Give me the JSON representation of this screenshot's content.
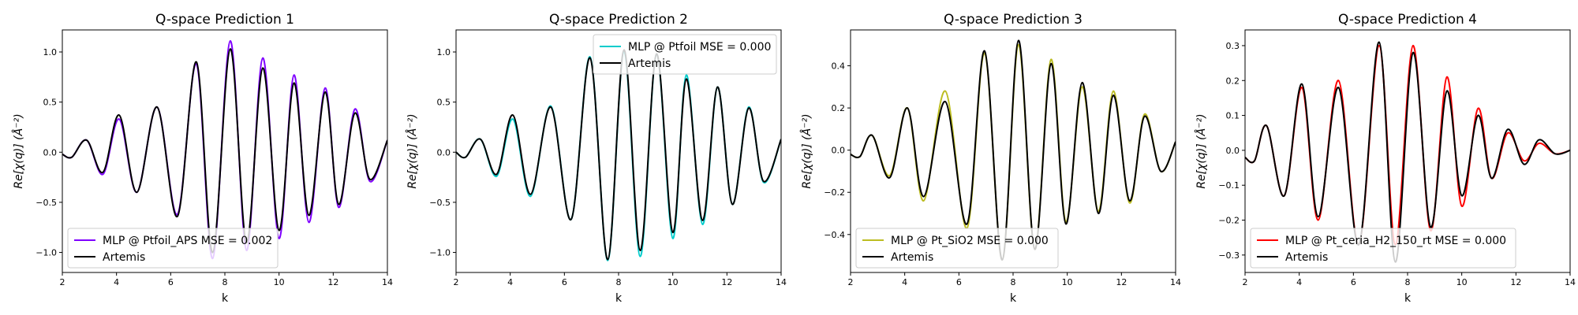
{
  "figure": {
    "background": "#ffffff"
  },
  "chart_data": [
    {
      "type": "line",
      "title": "Q-space Prediction 1",
      "xlabel": "k",
      "ylabel": "Re[χ(q)] (Å⁻²)",
      "xlim": [
        2,
        14
      ],
      "ylim": [
        -1.2,
        1.22
      ],
      "xticks": [
        2,
        4,
        6,
        8,
        10,
        12,
        14
      ],
      "xtick_labels": [
        "2",
        "4",
        "6",
        "8",
        "10",
        "12",
        "14"
      ],
      "yticks": [
        -1.0,
        -0.5,
        0.0,
        0.5,
        1.0
      ],
      "ytick_labels": [
        "−1.0",
        "−0.5",
        "0.0",
        "0.5",
        "1.0"
      ],
      "legend": "lower-left",
      "series": [
        {
          "name": "MLP @ Ptfoil_APS MSE = 0.002",
          "color": "#7f00ff",
          "x": [
            2.0,
            2.35,
            2.9,
            3.5,
            4.1,
            4.75,
            5.5,
            6.25,
            6.95,
            7.55,
            8.2,
            8.8,
            9.4,
            10.0,
            10.55,
            11.1,
            11.7,
            12.2,
            12.8,
            13.35,
            14.0
          ],
          "y": [
            -0.02,
            -0.05,
            0.12,
            -0.22,
            0.33,
            -0.4,
            0.45,
            -0.62,
            0.88,
            -1.06,
            1.11,
            -0.98,
            0.94,
            -0.86,
            0.77,
            -0.7,
            0.64,
            -0.55,
            0.43,
            -0.29,
            0.12
          ]
        },
        {
          "name": "Artemis",
          "color": "#000000",
          "x": [
            2.0,
            2.35,
            2.9,
            3.5,
            4.1,
            4.75,
            5.5,
            6.25,
            6.95,
            7.55,
            8.2,
            8.8,
            9.4,
            10.0,
            10.55,
            11.1,
            11.7,
            12.2,
            12.8,
            13.35,
            14.0
          ],
          "y": [
            -0.02,
            -0.05,
            0.12,
            -0.2,
            0.37,
            -0.4,
            0.45,
            -0.64,
            0.9,
            -1.0,
            1.03,
            -0.9,
            0.84,
            -0.78,
            0.69,
            -0.63,
            0.6,
            -0.52,
            0.39,
            -0.27,
            0.12
          ]
        }
      ]
    },
    {
      "type": "line",
      "title": "Q-space Prediction 2",
      "xlabel": "k",
      "ylabel": "Re[χ(q)] (Å⁻²)",
      "xlim": [
        2,
        14
      ],
      "ylim": [
        -1.2,
        1.22
      ],
      "xticks": [
        2,
        4,
        6,
        8,
        10,
        12,
        14
      ],
      "xtick_labels": [
        "2",
        "4",
        "6",
        "8",
        "10",
        "12",
        "14"
      ],
      "yticks": [
        -1.0,
        -0.5,
        0.0,
        0.5,
        1.0
      ],
      "ytick_labels": [
        "−1.0",
        "−0.5",
        "0.0",
        "0.5",
        "1.0"
      ],
      "legend": "upper-right",
      "series": [
        {
          "name": "MLP @ Ptfoil MSE = 0.000",
          "color": "#00cccc",
          "x": [
            2.0,
            2.35,
            2.9,
            3.5,
            4.1,
            4.75,
            5.5,
            6.25,
            6.95,
            7.6,
            8.2,
            8.8,
            9.4,
            10.0,
            10.5,
            11.1,
            11.65,
            12.2,
            12.8,
            13.35,
            14.0
          ],
          "y": [
            0.0,
            -0.05,
            0.13,
            -0.24,
            0.33,
            -0.44,
            0.46,
            -0.67,
            0.95,
            -1.08,
            1.0,
            -1.04,
            0.98,
            -0.86,
            0.77,
            -0.72,
            0.65,
            -0.52,
            0.45,
            -0.3,
            0.13
          ]
        },
        {
          "name": "Artemis",
          "color": "#000000",
          "x": [
            2.0,
            2.35,
            2.9,
            3.5,
            4.1,
            4.75,
            5.5,
            6.25,
            6.95,
            7.6,
            8.2,
            8.8,
            9.4,
            10.0,
            10.5,
            11.1,
            11.65,
            12.2,
            12.8,
            13.35,
            14.0
          ],
          "y": [
            0.0,
            -0.05,
            0.13,
            -0.22,
            0.37,
            -0.42,
            0.45,
            -0.67,
            0.94,
            -1.07,
            1.02,
            -0.98,
            0.98,
            -0.8,
            0.73,
            -0.68,
            0.65,
            -0.52,
            0.44,
            -0.29,
            0.13
          ]
        }
      ]
    },
    {
      "type": "line",
      "title": "Q-space Prediction 3",
      "xlabel": "k",
      "ylabel": "Re[χ(q)] (Å⁻²)",
      "xlim": [
        2,
        14
      ],
      "ylim": [
        -0.58,
        0.57
      ],
      "xticks": [
        2,
        4,
        6,
        8,
        10,
        12,
        14
      ],
      "xtick_labels": [
        "2",
        "4",
        "6",
        "8",
        "10",
        "12",
        "14"
      ],
      "yticks": [
        -0.4,
        -0.2,
        0.0,
        0.2,
        0.4
      ],
      "ytick_labels": [
        "−0.4",
        "−0.2",
        "0.0",
        "0.2",
        "0.4"
      ],
      "legend": "lower-left",
      "series": [
        {
          "name": "MLP @ Pt_SiO2 MSE = 0.000",
          "color": "#bcbd22",
          "x": [
            2.0,
            2.35,
            2.8,
            3.45,
            4.1,
            4.7,
            5.5,
            6.3,
            6.95,
            7.6,
            8.2,
            8.8,
            9.4,
            9.95,
            10.55,
            11.15,
            11.7,
            12.3,
            12.85,
            13.45,
            14.0
          ],
          "y": [
            -0.02,
            -0.03,
            0.07,
            -0.12,
            0.2,
            -0.24,
            0.28,
            -0.37,
            0.46,
            -0.52,
            0.5,
            -0.47,
            0.43,
            -0.34,
            0.3,
            -0.29,
            0.28,
            -0.25,
            0.17,
            -0.1,
            0.04
          ]
        },
        {
          "name": "Artemis",
          "color": "#000000",
          "x": [
            2.0,
            2.35,
            2.8,
            3.45,
            4.1,
            4.7,
            5.5,
            6.3,
            6.95,
            7.6,
            8.2,
            8.8,
            9.4,
            9.95,
            10.55,
            11.15,
            11.7,
            12.3,
            12.85,
            13.45,
            14.0
          ],
          "y": [
            -0.02,
            -0.03,
            0.07,
            -0.13,
            0.2,
            -0.22,
            0.23,
            -0.35,
            0.47,
            -0.52,
            0.52,
            -0.47,
            0.41,
            -0.35,
            0.32,
            -0.3,
            0.26,
            -0.24,
            0.16,
            -0.1,
            0.04
          ]
        }
      ]
    },
    {
      "type": "line",
      "title": "Q-space Prediction 4",
      "xlabel": "k",
      "ylabel": "Re[χ(q)] (Å⁻²)",
      "xlim": [
        2,
        14
      ],
      "ylim": [
        -0.35,
        0.345
      ],
      "xticks": [
        2,
        4,
        6,
        8,
        10,
        12,
        14
      ],
      "xtick_labels": [
        "2",
        "4",
        "6",
        "8",
        "10",
        "12",
        "14"
      ],
      "yticks": [
        -0.3,
        -0.2,
        -0.1,
        0.0,
        0.1,
        0.2,
        0.3
      ],
      "ytick_labels": [
        "−0.3",
        "−0.2",
        "−0.1",
        "0.0",
        "0.1",
        "0.2",
        "0.3"
      ],
      "legend": "lower-left",
      "series": [
        {
          "name": "MLP @ Pt_ceria_H2_150_rt MSE = 0.000",
          "color": "#ff0000",
          "x": [
            2.0,
            2.35,
            2.8,
            3.45,
            4.1,
            4.7,
            5.45,
            6.2,
            6.95,
            7.55,
            8.2,
            8.85,
            9.45,
            10.0,
            10.6,
            11.1,
            11.7,
            12.3,
            12.85,
            13.45,
            14.0
          ],
          "y": [
            -0.02,
            -0.03,
            0.07,
            -0.13,
            0.18,
            -0.2,
            0.2,
            -0.27,
            0.3,
            -0.27,
            0.3,
            -0.23,
            0.21,
            -0.16,
            0.12,
            -0.08,
            0.05,
            -0.03,
            0.02,
            -0.01,
            0.0
          ]
        },
        {
          "name": "Artemis",
          "color": "#000000",
          "x": [
            2.0,
            2.35,
            2.8,
            3.45,
            4.1,
            4.7,
            5.45,
            6.2,
            6.95,
            7.55,
            8.2,
            8.85,
            9.45,
            10.0,
            10.6,
            11.1,
            11.7,
            12.3,
            12.85,
            13.45,
            14.0
          ],
          "y": [
            -0.02,
            -0.03,
            0.07,
            -0.13,
            0.19,
            -0.19,
            0.18,
            -0.27,
            0.31,
            -0.32,
            0.28,
            -0.22,
            0.17,
            -0.13,
            0.1,
            -0.08,
            0.06,
            -0.04,
            0.03,
            -0.01,
            0.0
          ]
        }
      ]
    }
  ]
}
